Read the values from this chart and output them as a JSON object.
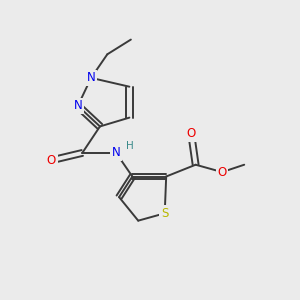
{
  "bg_color": "#ebebeb",
  "atom_colors": {
    "C": "#3a3a3a",
    "N": "#0000ee",
    "O": "#ee0000",
    "S": "#b8b800",
    "H": "#3a8a8a"
  },
  "bond_color": "#3a3a3a",
  "figsize": [
    3.0,
    3.0
  ],
  "dpi": 100
}
